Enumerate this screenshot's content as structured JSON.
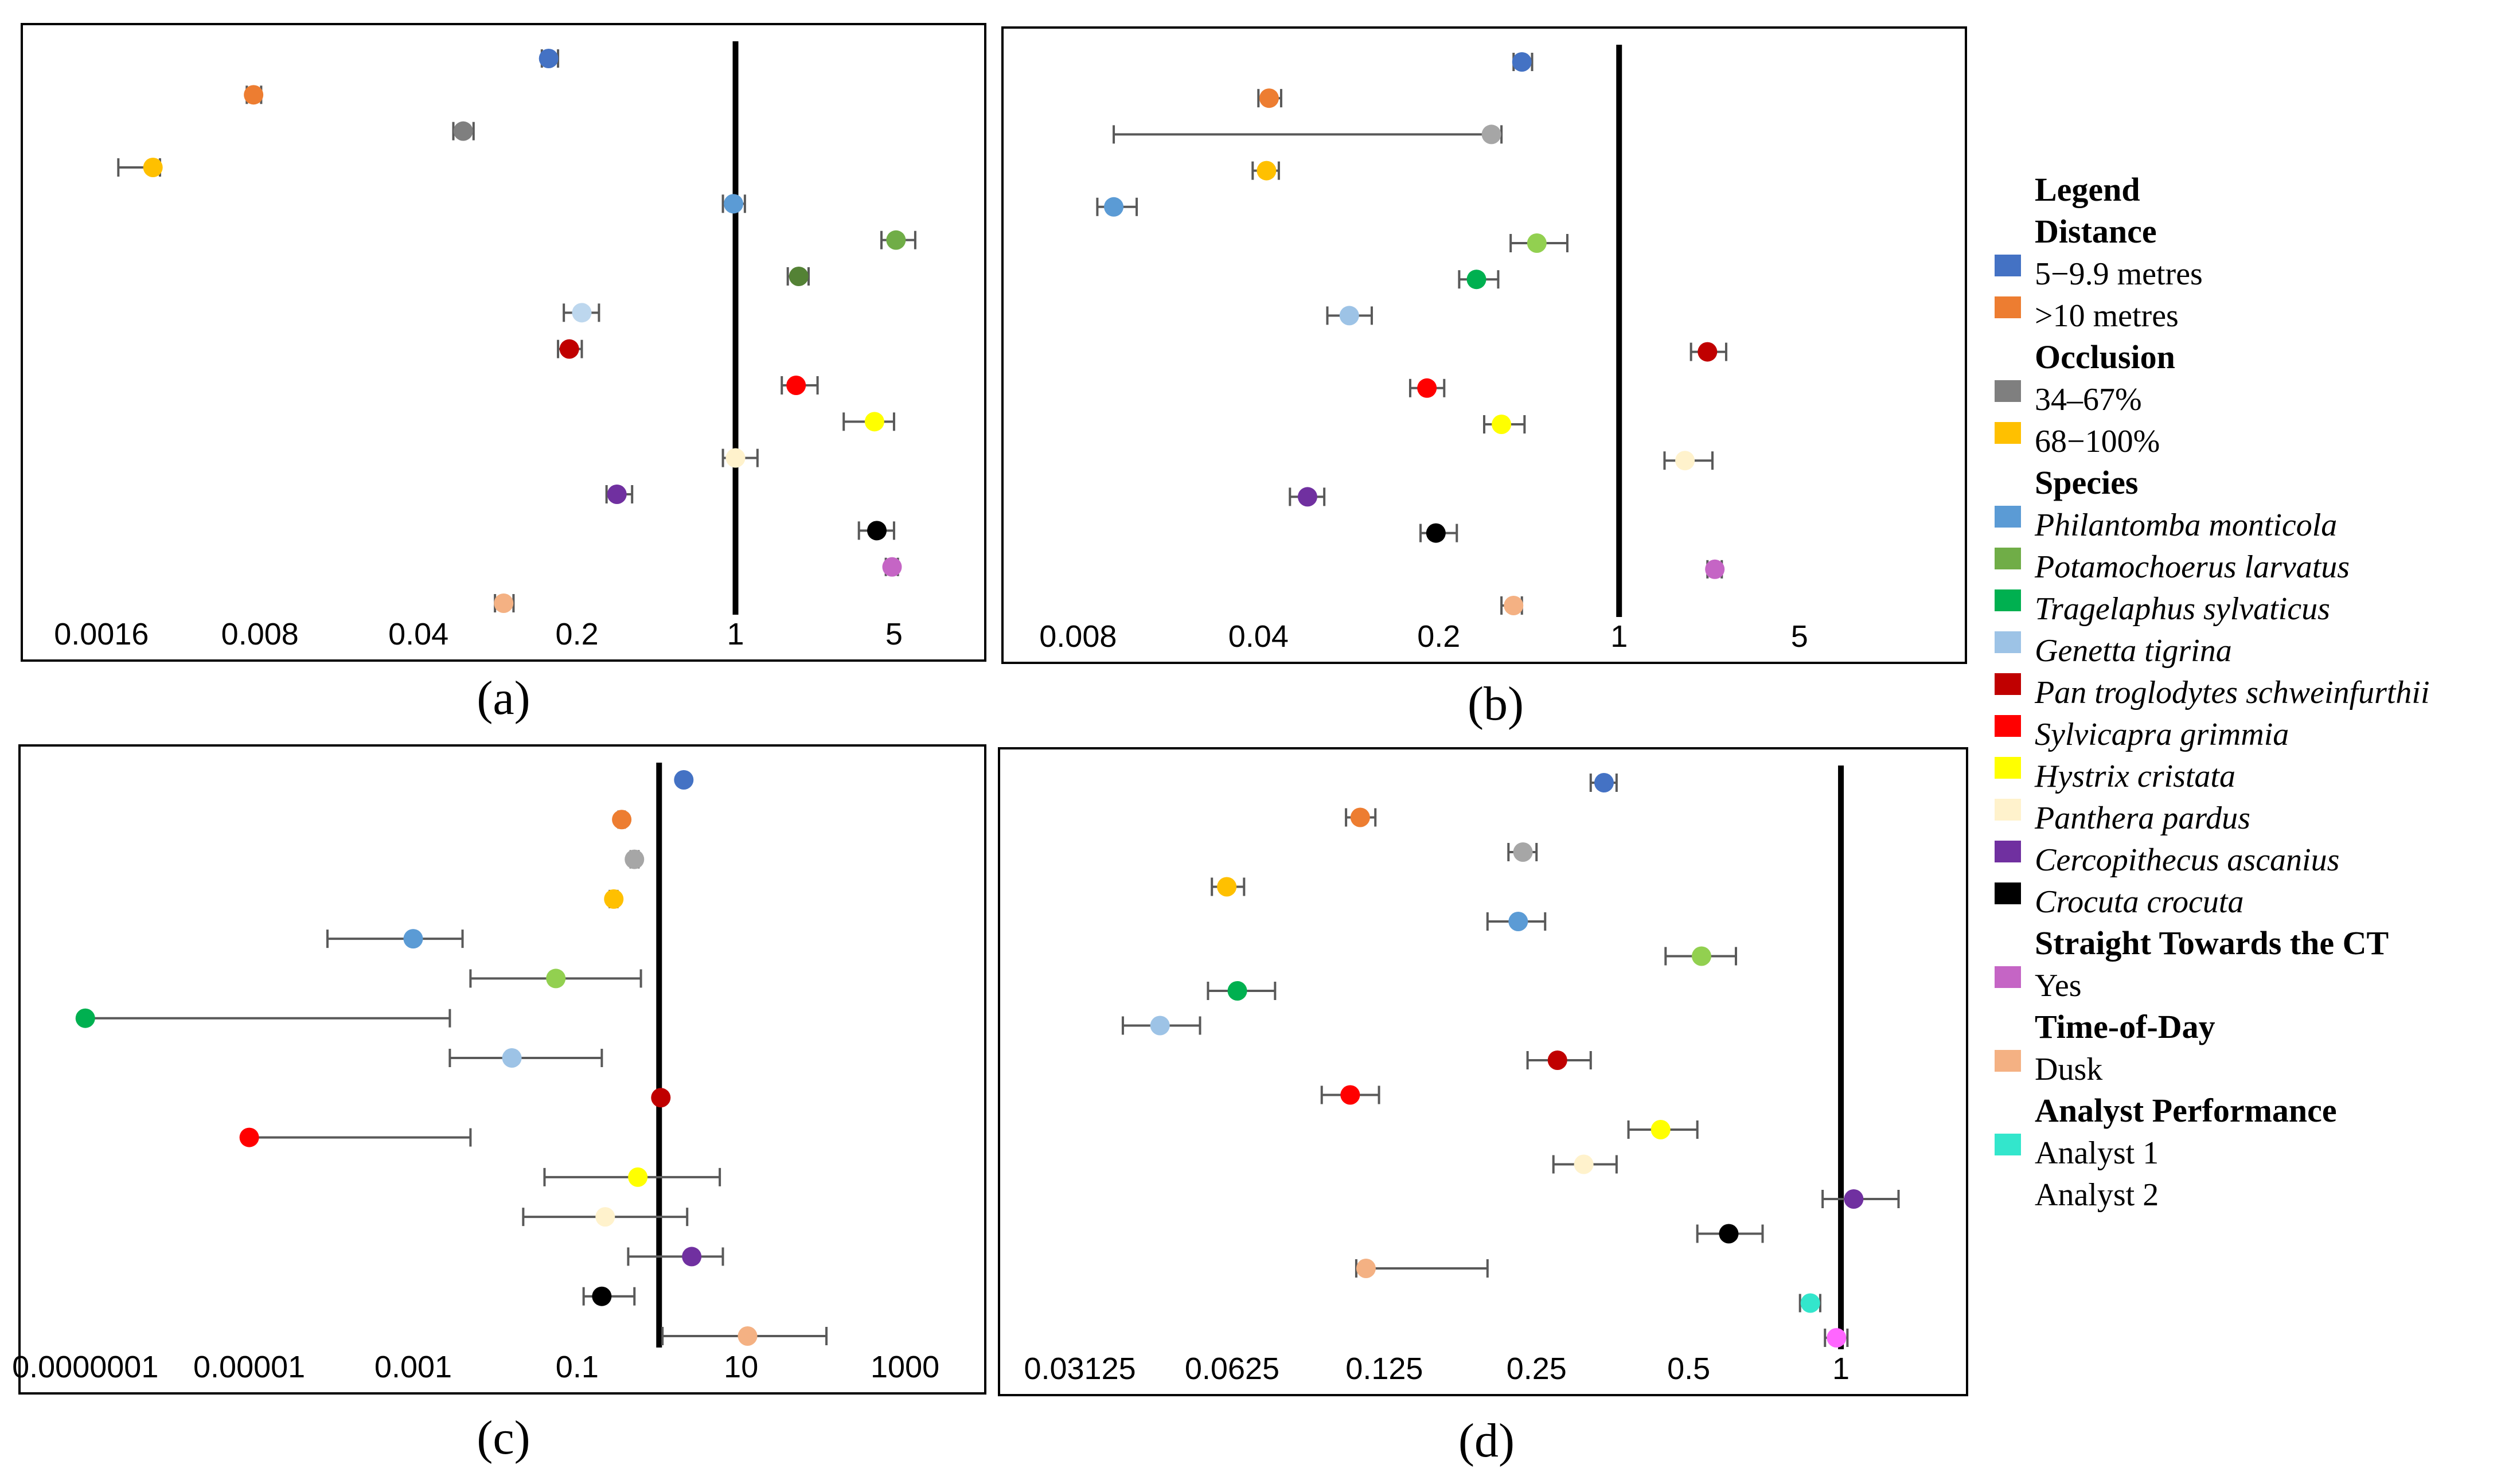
{
  "legend": {
    "title": "Legend",
    "groups": [
      {
        "heading": "Distance",
        "items": [
          {
            "label": "5−9.9 metres",
            "color": "#4472C4",
            "italic": false
          },
          {
            "label": ">10 metres",
            "color": "#ED7D31",
            "italic": false
          }
        ]
      },
      {
        "heading": "Occlusion",
        "items": [
          {
            "label": "34–67%",
            "color": "#7F7F7F",
            "italic": false
          },
          {
            "label": "68−100%",
            "color": "#FFC000",
            "italic": false
          }
        ]
      },
      {
        "heading": "Species",
        "items": [
          {
            "label": "Philantomba monticola",
            "color": "#5B9BD5",
            "italic": true
          },
          {
            "label": "Potamochoerus larvatus",
            "color": "#70AD47",
            "italic": true
          },
          {
            "label": "Tragelaphus sylvaticus",
            "color": "#00B050",
            "italic": true
          },
          {
            "label": "Genetta tigrina",
            "color": "#9DC3E6",
            "italic": true
          },
          {
            "label": "Pan troglodytes schweinfurthii",
            "color": "#C00000",
            "italic": true
          },
          {
            "label": "Sylvicapra grimmia",
            "color": "#FF0000",
            "italic": true
          },
          {
            "label": "Hystrix cristata",
            "color": "#FFFF00",
            "italic": true
          },
          {
            "label": "Panthera pardus",
            "color": "#FFF2CC",
            "italic": true
          },
          {
            "label": "Cercopithecus ascanius",
            "color": "#7030A0",
            "italic": true
          },
          {
            "label": "Crocuta crocuta",
            "color": "#000000",
            "italic": true
          }
        ]
      },
      {
        "heading": "Straight Towards the CT",
        "items": [
          {
            "label": "Yes",
            "color": "#C565C5",
            "italic": false
          }
        ]
      },
      {
        "heading": "Time-of-Day",
        "items": [
          {
            "label": "Dusk",
            "color": "#F4B183",
            "italic": false
          }
        ]
      },
      {
        "heading": "Analyst Performance",
        "items": [
          {
            "label": "Analyst 1",
            "color": "#33E6CC",
            "italic": false
          },
          {
            "label": "Analyst 2",
            "color": "#FF66FF",
            "italic": false
          }
        ]
      }
    ]
  },
  "chart_data": [
    {
      "panel": "(a)",
      "type": "scatter",
      "x_scale": "log",
      "xlim": [
        0.0009,
        10
      ],
      "reference_line": 1,
      "tick_labels": [
        "0.0016",
        "0.008",
        "0.04",
        "0.2",
        "1",
        "5"
      ],
      "tick_values": [
        0.0016,
        0.008,
        0.04,
        0.2,
        1,
        5
      ],
      "points": [
        {
          "label": "5−9.9 metres",
          "color": "#4472C4",
          "value": 0.15,
          "lo": 0.14,
          "hi": 0.165
        },
        {
          "label": ">10 metres",
          "color": "#ED7D31",
          "value": 0.0075,
          "lo": 0.007,
          "hi": 0.0081
        },
        {
          "label": "34–67%",
          "color": "#7F7F7F",
          "value": 0.063,
          "lo": 0.057,
          "hi": 0.07
        },
        {
          "label": "68−100%",
          "color": "#FFC000",
          "value": 0.0027,
          "lo": 0.0019,
          "hi": 0.0029
        },
        {
          "label": "Philantomba monticola",
          "color": "#5B9BD5",
          "value": 0.98,
          "lo": 0.88,
          "hi": 1.1
        },
        {
          "label": "Potamochoerus larvatus",
          "color": "#70AD47",
          "value": 5.1,
          "lo": 4.4,
          "hi": 6.2
        },
        {
          "label": "Tragelaphus sylvaticus",
          "color": "#548235",
          "value": 1.9,
          "lo": 1.7,
          "hi": 2.1
        },
        {
          "label": "Genetta tigrina",
          "color": "#BDD7EE",
          "value": 0.21,
          "lo": 0.175,
          "hi": 0.25
        },
        {
          "label": "Pan troglodytes schweinfurthii",
          "color": "#C00000",
          "value": 0.185,
          "lo": 0.165,
          "hi": 0.21
        },
        {
          "label": "Sylvicapra grimmia",
          "color": "#FF0000",
          "value": 1.85,
          "lo": 1.6,
          "hi": 2.3
        },
        {
          "label": "Hystrix cristata",
          "color": "#FFFF00",
          "value": 4.1,
          "lo": 3.0,
          "hi": 5.0
        },
        {
          "label": "Panthera pardus",
          "color": "#FFF2CC",
          "value": 1.0,
          "lo": 0.88,
          "hi": 1.25
        },
        {
          "label": "Cercopithecus ascanius",
          "color": "#7030A0",
          "value": 0.3,
          "lo": 0.27,
          "hi": 0.35
        },
        {
          "label": "Crocuta crocuta",
          "color": "#000000",
          "value": 4.2,
          "lo": 3.5,
          "hi": 5.0
        },
        {
          "label": "Yes",
          "color": "#C565C5",
          "value": 4.9,
          "lo": 4.6,
          "hi": 5.2
        },
        {
          "label": "Dusk",
          "color": "#F4B183",
          "value": 0.095,
          "lo": 0.087,
          "hi": 0.105
        }
      ]
    },
    {
      "panel": "(b)",
      "type": "scatter",
      "x_scale": "log",
      "xlim": [
        0.005,
        18
      ],
      "reference_line": 1,
      "tick_labels": [
        "0.008",
        "0.04",
        "0.2",
        "1",
        "5"
      ],
      "tick_values": [
        0.008,
        0.04,
        0.2,
        1,
        5
      ],
      "points": [
        {
          "label": "5−9.9 metres",
          "color": "#4472C4",
          "value": 0.42,
          "lo": 0.39,
          "hi": 0.46
        },
        {
          "label": ">10 metres",
          "color": "#ED7D31",
          "value": 0.044,
          "lo": 0.04,
          "hi": 0.049
        },
        {
          "label": "34–67%",
          "color": "#A6A6A6",
          "value": 0.32,
          "lo": 0.011,
          "hi": 0.35
        },
        {
          "label": "68−100%",
          "color": "#FFC000",
          "value": 0.043,
          "lo": 0.038,
          "hi": 0.048
        },
        {
          "label": "Philantomba monticola",
          "color": "#5B9BD5",
          "value": 0.011,
          "lo": 0.0095,
          "hi": 0.0135
        },
        {
          "label": "Potamochoerus larvatus",
          "color": "#92D050",
          "value": 0.48,
          "lo": 0.38,
          "hi": 0.63
        },
        {
          "label": "Tragelaphus sylvaticus",
          "color": "#00B050",
          "value": 0.28,
          "lo": 0.24,
          "hi": 0.34
        },
        {
          "label": "Genetta tigrina",
          "color": "#9DC3E6",
          "value": 0.09,
          "lo": 0.074,
          "hi": 0.11
        },
        {
          "label": "Pan troglodytes schweinfurthii",
          "color": "#C00000",
          "value": 2.2,
          "lo": 1.9,
          "hi": 2.6
        },
        {
          "label": "Sylvicapra grimmia",
          "color": "#FF0000",
          "value": 0.18,
          "lo": 0.155,
          "hi": 0.21
        },
        {
          "label": "Hystrix cristata",
          "color": "#FFFF00",
          "value": 0.35,
          "lo": 0.3,
          "hi": 0.43
        },
        {
          "label": "Panthera pardus",
          "color": "#FFF2CC",
          "value": 1.8,
          "lo": 1.5,
          "hi": 2.3
        },
        {
          "label": "Cercopithecus ascanius",
          "color": "#7030A0",
          "value": 0.062,
          "lo": 0.053,
          "hi": 0.072
        },
        {
          "label": "Crocuta crocuta",
          "color": "#000000",
          "value": 0.195,
          "lo": 0.17,
          "hi": 0.235
        },
        {
          "label": "Yes",
          "color": "#C565C5",
          "value": 2.35,
          "lo": 2.2,
          "hi": 2.5
        },
        {
          "label": "Dusk",
          "color": "#F4B183",
          "value": 0.39,
          "lo": 0.35,
          "hi": 0.42
        }
      ]
    },
    {
      "panel": "(c)",
      "type": "scatter",
      "x_scale": "log",
      "xlim": [
        3e-08,
        5000
      ],
      "reference_line": 1,
      "tick_labels": [
        "0.0000001",
        "0.00001",
        "0.001",
        "0.1",
        "10",
        "1000"
      ],
      "tick_values": [
        1e-07,
        1e-05,
        0.001,
        0.1,
        10,
        1000
      ],
      "points": [
        {
          "label": "5−9.9 metres",
          "color": "#4472C4",
          "value": 2.0,
          "lo": 1.9,
          "hi": 2.1
        },
        {
          "label": ">10 metres",
          "color": "#ED7D31",
          "value": 0.35,
          "lo": 0.32,
          "hi": 0.38
        },
        {
          "label": "34–67%",
          "color": "#A6A6A6",
          "value": 0.5,
          "lo": 0.45,
          "hi": 0.56
        },
        {
          "label": "68−100%",
          "color": "#FFC000",
          "value": 0.28,
          "lo": 0.25,
          "hi": 0.31
        },
        {
          "label": "Philantomba monticola",
          "color": "#5B9BD5",
          "value": 0.001,
          "lo": 9e-05,
          "hi": 0.004
        },
        {
          "label": "Potamochoerus larvatus",
          "color": "#92D050",
          "value": 0.055,
          "lo": 0.005,
          "hi": 0.6
        },
        {
          "label": "Tragelaphus sylvaticus",
          "color": "#00B050",
          "value": 1e-07,
          "lo": 1e-07,
          "hi": 0.0028
        },
        {
          "label": "Genetta tigrina",
          "color": "#9DC3E6",
          "value": 0.016,
          "lo": 0.0028,
          "hi": 0.2
        },
        {
          "label": "Pan troglodytes schweinfurthii",
          "color": "#C00000",
          "value": 1.05,
          "lo": 0.98,
          "hi": 1.12
        },
        {
          "label": "Sylvicapra grimmia",
          "color": "#FF0000",
          "value": 1e-05,
          "lo": 1e-05,
          "hi": 0.005
        },
        {
          "label": "Hystrix cristata",
          "color": "#FFFF00",
          "value": 0.55,
          "lo": 0.04,
          "hi": 5.5
        },
        {
          "label": "Panthera pardus",
          "color": "#FFF2CC",
          "value": 0.22,
          "lo": 0.022,
          "hi": 2.2
        },
        {
          "label": "Cercopithecus ascanius",
          "color": "#7030A0",
          "value": 2.5,
          "lo": 0.42,
          "hi": 6.0
        },
        {
          "label": "Crocuta crocuta",
          "color": "#000000",
          "value": 0.2,
          "lo": 0.12,
          "hi": 0.5
        },
        {
          "label": "Dusk",
          "color": "#F4B183",
          "value": 12,
          "lo": 1.1,
          "hi": 110
        }
      ]
    },
    {
      "panel": "(d)",
      "type": "scatter",
      "x_scale": "log",
      "xlim": [
        0.024,
        1.6
      ],
      "reference_line": 1,
      "tick_labels": [
        "0.03125",
        "0.0625",
        "0.125",
        "0.25",
        "0.5",
        "1"
      ],
      "tick_values": [
        0.03125,
        0.0625,
        0.125,
        0.25,
        0.5,
        1
      ],
      "points": [
        {
          "label": "5−9.9 metres",
          "color": "#4472C4",
          "value": 0.34,
          "lo": 0.32,
          "hi": 0.36
        },
        {
          "label": ">10 metres",
          "color": "#ED7D31",
          "value": 0.112,
          "lo": 0.105,
          "hi": 0.12
        },
        {
          "label": "34–67%",
          "color": "#A6A6A6",
          "value": 0.235,
          "lo": 0.22,
          "hi": 0.25
        },
        {
          "label": "68−100%",
          "color": "#FFC000",
          "value": 0.061,
          "lo": 0.057,
          "hi": 0.066
        },
        {
          "label": "Philantomba monticola",
          "color": "#5B9BD5",
          "value": 0.23,
          "lo": 0.2,
          "hi": 0.26
        },
        {
          "label": "Potamochoerus larvatus",
          "color": "#92D050",
          "value": 0.53,
          "lo": 0.45,
          "hi": 0.62
        },
        {
          "label": "Tragelaphus sylvaticus",
          "color": "#00B050",
          "value": 0.064,
          "lo": 0.056,
          "hi": 0.076
        },
        {
          "label": "Genetta tigrina",
          "color": "#9DC3E6",
          "value": 0.045,
          "lo": 0.038,
          "hi": 0.054
        },
        {
          "label": "Pan troglodytes schweinfurthii",
          "color": "#C00000",
          "value": 0.275,
          "lo": 0.24,
          "hi": 0.32
        },
        {
          "label": "Sylvicapra grimmia",
          "color": "#FF0000",
          "value": 0.107,
          "lo": 0.094,
          "hi": 0.122
        },
        {
          "label": "Hystrix cristata",
          "color": "#FFFF00",
          "value": 0.44,
          "lo": 0.38,
          "hi": 0.52
        },
        {
          "label": "Panthera pardus",
          "color": "#FFF2CC",
          "value": 0.31,
          "lo": 0.27,
          "hi": 0.36
        },
        {
          "label": "Cercopithecus ascanius",
          "color": "#7030A0",
          "value": 1.06,
          "lo": 0.92,
          "hi": 1.3
        },
        {
          "label": "Crocuta crocuta",
          "color": "#000000",
          "value": 0.6,
          "lo": 0.52,
          "hi": 0.7
        },
        {
          "label": "Dusk",
          "color": "#F4B183",
          "value": 0.115,
          "lo": 0.11,
          "hi": 0.2
        },
        {
          "label": "Analyst 1",
          "color": "#33E6CC",
          "value": 0.87,
          "lo": 0.83,
          "hi": 0.91
        },
        {
          "label": "Analyst 2",
          "color": "#FF66FF",
          "value": 0.98,
          "lo": 0.93,
          "hi": 1.03
        }
      ]
    }
  ]
}
